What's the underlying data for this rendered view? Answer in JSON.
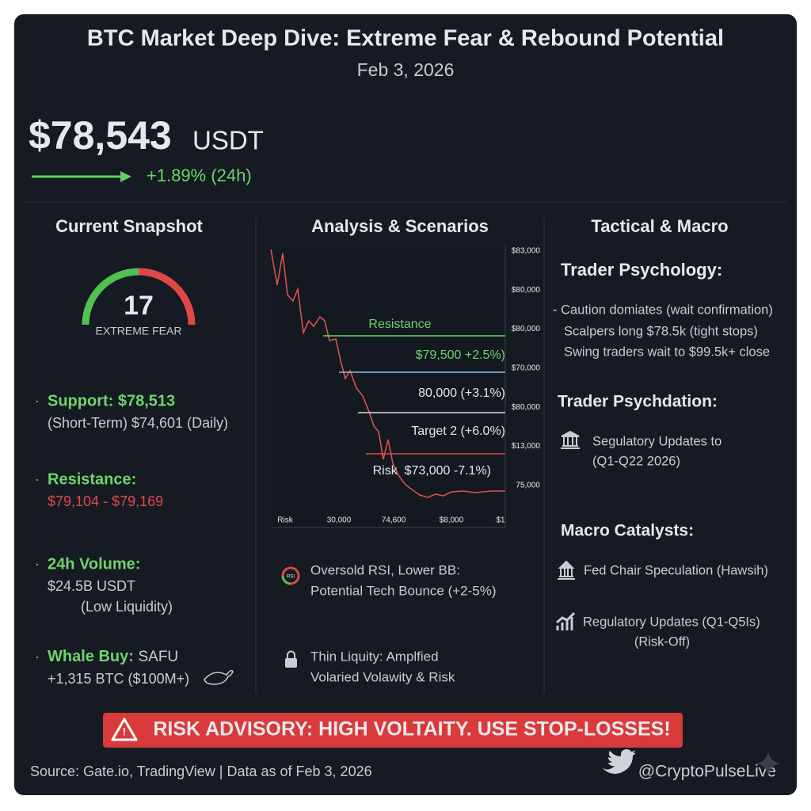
{
  "header": {
    "title": "BTC Market Deep Dive: Extreme Fear & Rebound Potential",
    "date": "Feb 3, 2026"
  },
  "price": {
    "value": "$78,543",
    "unit": "USDT",
    "change": "+1.89% (24h)"
  },
  "snapshot": {
    "heading": "Current Snapshot",
    "gauge": {
      "value": 17,
      "label": "EXTREME FEAR"
    },
    "items": [
      {
        "label": "Support: $78,513",
        "lines": [
          "(Short-Term) $74,601 (Daily)"
        ]
      },
      {
        "label": "Resistance:",
        "lines": [
          "$79,104 - $79,169"
        ]
      },
      {
        "label": "24h Volume:",
        "lines": [
          "$24.5B USDT",
          "(Low Liquidity)"
        ]
      },
      {
        "label": "Whale Buy:",
        "suffix": "SAFU",
        "lines": [
          "+1,315 BTC ($100M+)"
        ]
      }
    ]
  },
  "analysis": {
    "heading": "Analysis & Scenarios",
    "levels": [
      "Resistance",
      "$79,500 +2.5%)",
      "80,000 (+3.1%)",
      "Target 2 (+6.0%)",
      "Risk  $73,000 -7.1%)"
    ],
    "right_labels": [
      "$83,000",
      "$80,000",
      "$80,000",
      "$70,000",
      "$80,000",
      "$13,000",
      "75,000"
    ],
    "bottom_labels": [
      "Risk",
      "30,000",
      "74,600",
      "$8,000",
      "$1"
    ],
    "icon_text": "RSI",
    "notes": [
      [
        "Oversold RSI, Lower BB:",
        "Potential Tech Bounce (+2-5%)"
      ],
      [
        "Thin Liquity: Amplfied",
        "Volaried Volawity & Risk"
      ]
    ]
  },
  "tactical": {
    "heading": "Tactical & Macro",
    "psychology": {
      "heading": "Trader Psychology:",
      "lines": [
        "- Caution domiates (wait confirmation)",
        "Scalpers long $78.5k (tight stops)",
        "Swing traders wait to $99.5k+ close"
      ]
    },
    "psychdation": {
      "heading": "Trader Psychdation:",
      "lines": [
        "Segulatory Updates to",
        "(Q1-Q22 2026)"
      ]
    },
    "macro": {
      "heading": "Macro Catalysts:",
      "items": [
        [
          "Fed Chair Speculation (Hawsih)"
        ],
        [
          "Regulatory Updates (Q1-Q5Is)",
          "(Risk-Off)"
        ]
      ]
    }
  },
  "banner": "RISK ADVISORY: HIGH VOLTAITY. USE STOP-LOSSES!",
  "footer": {
    "source": "Source: Gate.io, TradingView | Data as of Feb 3, 2026",
    "handle": "@CryptoPulseLive"
  }
}
